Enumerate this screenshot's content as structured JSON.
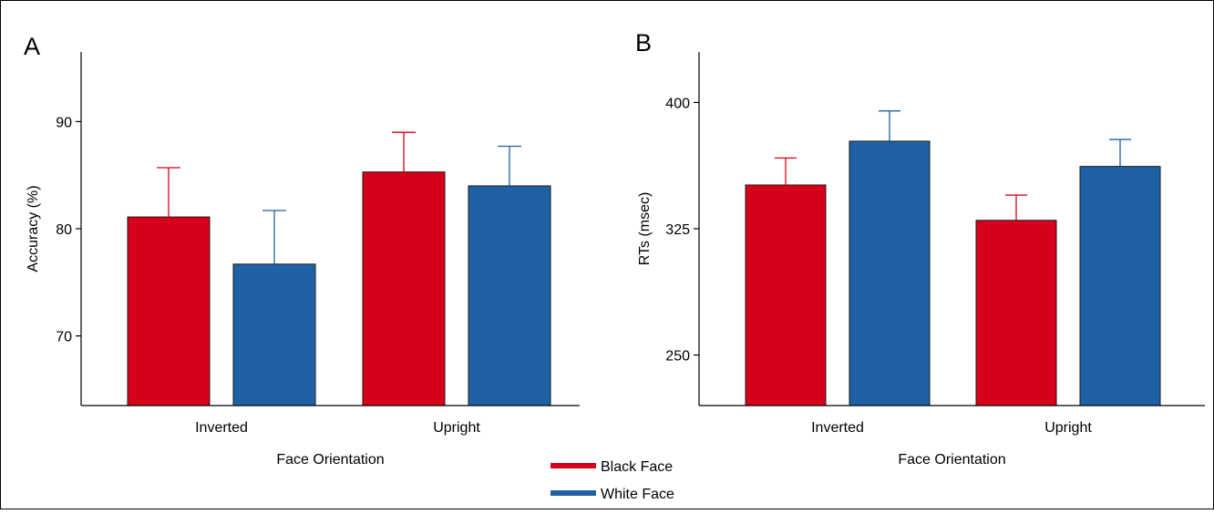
{
  "legend": {
    "items": [
      {
        "label": "Black Face",
        "color": "#d7001a"
      },
      {
        "label": "White Face",
        "color": "#1f61a5"
      }
    ]
  },
  "chart_data": [
    {
      "panel_label": "A",
      "type": "bar",
      "categories": [
        "Inverted",
        "Upright"
      ],
      "series": [
        {
          "name": "Black Face",
          "color": "#d7001a",
          "values": [
            81.1,
            85.3
          ],
          "error": [
            4.6,
            3.7
          ]
        },
        {
          "name": "White Face",
          "color": "#1f61a5",
          "values": [
            76.7,
            84.0
          ],
          "error": [
            5.0,
            3.7
          ]
        }
      ],
      "xlabel": "Face Orientation",
      "ylabel": "Accuracy (%)",
      "ylim": [
        63.5,
        96.5
      ],
      "yticks": [
        70,
        80,
        90
      ],
      "grid": false,
      "legend": "bottom-center"
    },
    {
      "panel_label": "B",
      "type": "bar",
      "categories": [
        "Inverted",
        "Upright"
      ],
      "series": [
        {
          "name": "Black Face",
          "color": "#d7001a",
          "values": [
            351,
            330
          ],
          "error": [
            16,
            15
          ]
        },
        {
          "name": "White Face",
          "color": "#1f61a5",
          "values": [
            377,
            362
          ],
          "error": [
            18,
            16
          ]
        }
      ],
      "xlabel": "Face Orientation",
      "ylabel": "RTs (msec)",
      "ylim": [
        220,
        430
      ],
      "yticks": [
        250,
        325,
        400
      ],
      "grid": false,
      "legend": "bottom-center"
    }
  ]
}
